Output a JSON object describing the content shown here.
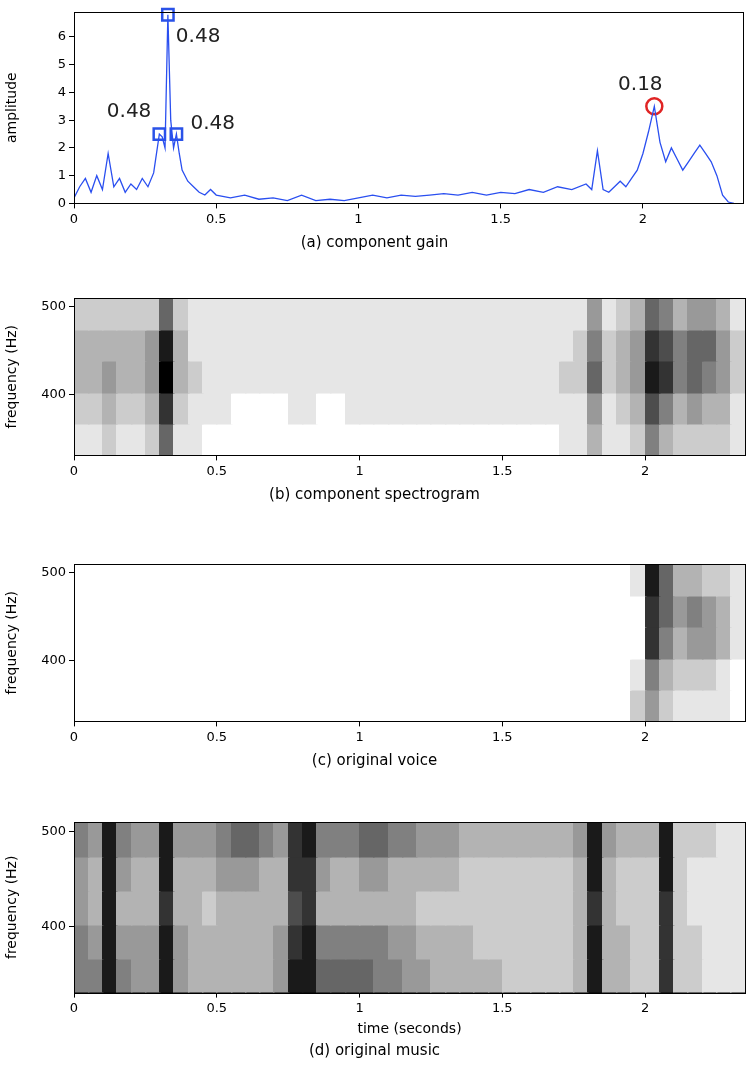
{
  "chart_data": [
    {
      "type": "line",
      "title": "(a) component gain",
      "y_label": "amplitude",
      "grid": false,
      "color": "#2a4ff0",
      "xlim": [
        0,
        2.35
      ],
      "xticks": [
        0,
        0.5,
        1,
        1.5,
        2
      ],
      "ylim": [
        0,
        6.9
      ],
      "yticks": [
        0,
        1,
        2,
        3,
        4,
        5,
        6
      ],
      "x": [
        0,
        0.02,
        0.04,
        0.06,
        0.08,
        0.1,
        0.12,
        0.14,
        0.16,
        0.18,
        0.2,
        0.22,
        0.24,
        0.26,
        0.28,
        0.3,
        0.31,
        0.32,
        0.33,
        0.34,
        0.35,
        0.36,
        0.37,
        0.38,
        0.4,
        0.42,
        0.44,
        0.46,
        0.48,
        0.5,
        0.55,
        0.6,
        0.65,
        0.7,
        0.75,
        0.8,
        0.85,
        0.9,
        0.95,
        1,
        1.05,
        1.1,
        1.15,
        1.2,
        1.25,
        1.3,
        1.35,
        1.4,
        1.45,
        1.5,
        1.55,
        1.6,
        1.65,
        1.7,
        1.75,
        1.8,
        1.82,
        1.84,
        1.86,
        1.88,
        1.9,
        1.92,
        1.94,
        1.96,
        1.98,
        2,
        2.02,
        2.04,
        2.06,
        2.08,
        2.1,
        2.12,
        2.14,
        2.16,
        2.18,
        2.2,
        2.22,
        2.24,
        2.26,
        2.28,
        2.3,
        2.32
      ],
      "values": [
        0.2,
        0.6,
        0.9,
        0.4,
        1.0,
        0.5,
        1.8,
        0.6,
        0.9,
        0.4,
        0.7,
        0.5,
        0.9,
        0.6,
        1.1,
        2.5,
        2.4,
        2.0,
        6.8,
        3.0,
        2.0,
        2.5,
        1.8,
        1.2,
        0.8,
        0.6,
        0.4,
        0.3,
        0.5,
        0.3,
        0.2,
        0.3,
        0.15,
        0.2,
        0.1,
        0.3,
        0.1,
        0.15,
        0.1,
        0.2,
        0.3,
        0.2,
        0.3,
        0.25,
        0.3,
        0.35,
        0.3,
        0.4,
        0.3,
        0.4,
        0.35,
        0.5,
        0.4,
        0.6,
        0.5,
        0.7,
        0.5,
        1.9,
        0.5,
        0.4,
        0.6,
        0.8,
        0.6,
        0.9,
        1.2,
        1.8,
        2.6,
        3.5,
        2.2,
        1.5,
        2.0,
        1.6,
        1.2,
        1.5,
        1.8,
        2.1,
        1.8,
        1.5,
        1.0,
        0.3,
        0.05,
        0
      ],
      "annotations": [
        {
          "x": 0.33,
          "y": 6.8,
          "text": "0.48",
          "marker": "square",
          "color": "#2a52e8"
        },
        {
          "x": 0.3,
          "y": 2.5,
          "text": "0.48",
          "marker": "square",
          "color": "#2a52e8"
        },
        {
          "x": 0.36,
          "y": 2.5,
          "text": "0.48",
          "marker": "square",
          "color": "#2a52e8"
        },
        {
          "x": 2.04,
          "y": 3.5,
          "text": "0.18",
          "marker": "circle",
          "color": "#e02424"
        }
      ]
    },
    {
      "type": "heatmap",
      "title": "(b) component spectrogram",
      "y_label": "frequency (Hz)",
      "grid": false,
      "color": "#000000",
      "xlim": [
        0,
        2.35
      ],
      "xticks": [
        0,
        0.5,
        1,
        1.5,
        2
      ],
      "ylim": [
        330,
        510
      ],
      "yticks": [
        400,
        500
      ],
      "value_range": [
        0,
        1
      ],
      "x": [
        0,
        0.05,
        0.1,
        0.15,
        0.2,
        0.25,
        0.3,
        0.35,
        0.4,
        0.45,
        0.5,
        0.55,
        0.6,
        0.65,
        0.7,
        0.75,
        0.8,
        0.85,
        0.9,
        0.95,
        1,
        1.05,
        1.1,
        1.15,
        1.2,
        1.25,
        1.3,
        1.35,
        1.4,
        1.45,
        1.5,
        1.55,
        1.6,
        1.65,
        1.7,
        1.75,
        1.8,
        1.85,
        1.9,
        1.95,
        2,
        2.05,
        2.1,
        2.15,
        2.2,
        2.25,
        2.3,
        2.35
      ],
      "y": [
        330,
        366,
        402,
        438,
        474,
        510
      ],
      "cells": [
        [
          0.1,
          0.1,
          0.2,
          0.1,
          0.1,
          0.2,
          0.6,
          0.1,
          0.1,
          0,
          0,
          0,
          0,
          0,
          0,
          0,
          0,
          0,
          0,
          0,
          0,
          0,
          0,
          0,
          0,
          0,
          0,
          0,
          0,
          0,
          0,
          0,
          0,
          0,
          0.1,
          0.1,
          0.3,
          0.1,
          0.1,
          0.2,
          0.5,
          0.3,
          0.2,
          0.2,
          0.2,
          0.2,
          0.1
        ],
        [
          0.2,
          0.2,
          0.3,
          0.2,
          0.2,
          0.3,
          0.8,
          0.2,
          0.1,
          0.1,
          0.1,
          0,
          0,
          0,
          0,
          0.1,
          0.1,
          0,
          0,
          0.1,
          0.1,
          0.1,
          0.1,
          0.1,
          0.1,
          0.1,
          0.1,
          0.1,
          0.1,
          0.1,
          0.1,
          0.1,
          0.1,
          0.1,
          0.1,
          0.1,
          0.4,
          0.1,
          0.2,
          0.3,
          0.7,
          0.5,
          0.3,
          0.4,
          0.3,
          0.3,
          0.1
        ],
        [
          0.3,
          0.3,
          0.4,
          0.3,
          0.3,
          0.4,
          1.0,
          0.3,
          0.2,
          0.1,
          0.1,
          0.1,
          0.1,
          0.1,
          0.1,
          0.1,
          0.1,
          0.1,
          0.1,
          0.1,
          0.1,
          0.1,
          0.1,
          0.1,
          0.1,
          0.1,
          0.1,
          0.1,
          0.1,
          0.1,
          0.1,
          0.1,
          0.1,
          0.1,
          0.2,
          0.2,
          0.6,
          0.2,
          0.3,
          0.4,
          0.9,
          0.8,
          0.5,
          0.6,
          0.5,
          0.4,
          0.2
        ],
        [
          0.3,
          0.3,
          0.3,
          0.3,
          0.3,
          0.4,
          0.9,
          0.3,
          0.1,
          0.1,
          0.1,
          0.1,
          0.1,
          0.1,
          0.1,
          0.1,
          0.1,
          0.1,
          0.1,
          0.1,
          0.1,
          0.1,
          0.1,
          0.1,
          0.1,
          0.1,
          0.1,
          0.1,
          0.1,
          0.1,
          0.1,
          0.1,
          0.1,
          0.1,
          0.1,
          0.2,
          0.5,
          0.2,
          0.3,
          0.4,
          0.8,
          0.7,
          0.5,
          0.6,
          0.6,
          0.4,
          0.2
        ],
        [
          0.2,
          0.2,
          0.2,
          0.2,
          0.2,
          0.2,
          0.6,
          0.2,
          0.1,
          0.1,
          0.1,
          0.1,
          0.1,
          0.1,
          0.1,
          0.1,
          0.1,
          0.1,
          0.1,
          0.1,
          0.1,
          0.1,
          0.1,
          0.1,
          0.1,
          0.1,
          0.1,
          0.1,
          0.1,
          0.1,
          0.1,
          0.1,
          0.1,
          0.1,
          0.1,
          0.1,
          0.4,
          0.1,
          0.2,
          0.3,
          0.6,
          0.5,
          0.3,
          0.4,
          0.4,
          0.3,
          0.1
        ]
      ]
    },
    {
      "type": "heatmap",
      "title": "(c) original voice",
      "y_label": "frequency (Hz)",
      "grid": false,
      "color": "#000000",
      "xlim": [
        0,
        2.35
      ],
      "xticks": [
        0,
        0.5,
        1,
        1.5,
        2
      ],
      "ylim": [
        330,
        510
      ],
      "yticks": [
        400,
        500
      ],
      "value_range": [
        0,
        1
      ],
      "x": [
        0,
        0.05,
        0.1,
        0.15,
        0.2,
        0.25,
        0.3,
        0.35,
        0.4,
        0.45,
        0.5,
        0.55,
        0.6,
        0.65,
        0.7,
        0.75,
        0.8,
        0.85,
        0.9,
        0.95,
        1,
        1.05,
        1.1,
        1.15,
        1.2,
        1.25,
        1.3,
        1.35,
        1.4,
        1.45,
        1.5,
        1.55,
        1.6,
        1.65,
        1.7,
        1.75,
        1.8,
        1.85,
        1.9,
        1.95,
        2,
        2.05,
        2.1,
        2.15,
        2.2,
        2.25,
        2.3,
        2.35
      ],
      "y": [
        330,
        366,
        402,
        438,
        474,
        510
      ],
      "cells": [
        [
          0,
          0,
          0,
          0,
          0,
          0,
          0,
          0,
          0,
          0,
          0,
          0,
          0,
          0,
          0,
          0,
          0,
          0,
          0,
          0,
          0,
          0,
          0,
          0,
          0,
          0,
          0,
          0,
          0,
          0,
          0,
          0,
          0,
          0,
          0,
          0,
          0,
          0,
          0,
          0.2,
          0.4,
          0.2,
          0.1,
          0.1,
          0.1,
          0.1,
          0
        ],
        [
          0,
          0,
          0,
          0,
          0,
          0,
          0,
          0,
          0,
          0,
          0,
          0,
          0,
          0,
          0,
          0,
          0,
          0,
          0,
          0,
          0,
          0,
          0,
          0,
          0,
          0,
          0,
          0,
          0,
          0,
          0,
          0,
          0,
          0,
          0,
          0,
          0,
          0,
          0,
          0.1,
          0.5,
          0.3,
          0.2,
          0.2,
          0.2,
          0.1,
          0
        ],
        [
          0,
          0,
          0,
          0,
          0,
          0,
          0,
          0,
          0,
          0,
          0,
          0,
          0,
          0,
          0,
          0,
          0,
          0,
          0,
          0,
          0,
          0,
          0,
          0,
          0,
          0,
          0,
          0,
          0,
          0,
          0,
          0,
          0,
          0,
          0,
          0,
          0,
          0,
          0,
          0,
          0.8,
          0.5,
          0.3,
          0.4,
          0.4,
          0.3,
          0.1
        ],
        [
          0,
          0,
          0,
          0,
          0,
          0,
          0,
          0,
          0,
          0,
          0,
          0,
          0,
          0,
          0,
          0,
          0,
          0,
          0,
          0,
          0,
          0,
          0,
          0,
          0,
          0,
          0,
          0,
          0,
          0,
          0,
          0,
          0,
          0,
          0,
          0,
          0,
          0,
          0,
          0,
          0.8,
          0.6,
          0.4,
          0.5,
          0.4,
          0.3,
          0.1
        ],
        [
          0,
          0,
          0,
          0,
          0,
          0,
          0,
          0,
          0,
          0,
          0,
          0,
          0,
          0,
          0,
          0,
          0,
          0,
          0,
          0,
          0,
          0,
          0,
          0,
          0,
          0,
          0,
          0,
          0,
          0,
          0,
          0,
          0,
          0,
          0,
          0,
          0,
          0,
          0,
          0.1,
          0.9,
          0.6,
          0.3,
          0.3,
          0.2,
          0.2,
          0.1
        ]
      ]
    },
    {
      "type": "heatmap",
      "title": "(d) original music",
      "x_label": "time (seconds)",
      "y_label": "frequency (Hz)",
      "grid": false,
      "color": "#000000",
      "xlim": [
        0,
        2.35
      ],
      "xticks": [
        0,
        0.5,
        1,
        1.5,
        2
      ],
      "ylim": [
        330,
        510
      ],
      "yticks": [
        400,
        500
      ],
      "value_range": [
        0,
        1
      ],
      "x": [
        0,
        0.05,
        0.1,
        0.15,
        0.2,
        0.25,
        0.3,
        0.35,
        0.4,
        0.45,
        0.5,
        0.55,
        0.6,
        0.65,
        0.7,
        0.75,
        0.8,
        0.85,
        0.9,
        0.95,
        1,
        1.05,
        1.1,
        1.15,
        1.2,
        1.25,
        1.3,
        1.35,
        1.4,
        1.45,
        1.5,
        1.55,
        1.6,
        1.65,
        1.7,
        1.75,
        1.8,
        1.85,
        1.9,
        1.95,
        2,
        2.05,
        2.1,
        2.15,
        2.2,
        2.25,
        2.3,
        2.35
      ],
      "y": [
        330,
        366,
        402,
        438,
        474,
        510
      ],
      "cells": [
        [
          0.5,
          0.5,
          0.9,
          0.5,
          0.4,
          0.4,
          0.9,
          0.4,
          0.3,
          0.3,
          0.3,
          0.3,
          0.3,
          0.3,
          0.4,
          0.9,
          0.9,
          0.6,
          0.6,
          0.6,
          0.6,
          0.5,
          0.5,
          0.4,
          0.4,
          0.3,
          0.3,
          0.3,
          0.3,
          0.3,
          0.2,
          0.2,
          0.2,
          0.2,
          0.2,
          0.3,
          0.9,
          0.3,
          0.3,
          0.2,
          0.2,
          0.8,
          0.2,
          0.2,
          0.1,
          0.1,
          0.1
        ],
        [
          0.5,
          0.4,
          0.9,
          0.4,
          0.4,
          0.4,
          0.9,
          0.4,
          0.3,
          0.3,
          0.3,
          0.3,
          0.3,
          0.3,
          0.4,
          0.8,
          0.9,
          0.5,
          0.5,
          0.5,
          0.5,
          0.5,
          0.4,
          0.4,
          0.3,
          0.3,
          0.3,
          0.3,
          0.2,
          0.2,
          0.2,
          0.2,
          0.2,
          0.2,
          0.2,
          0.3,
          0.9,
          0.3,
          0.3,
          0.2,
          0.2,
          0.8,
          0.2,
          0.2,
          0.1,
          0.1,
          0.1
        ],
        [
          0.4,
          0.3,
          0.9,
          0.3,
          0.3,
          0.3,
          0.8,
          0.3,
          0.3,
          0.2,
          0.3,
          0.3,
          0.3,
          0.3,
          0.3,
          0.7,
          0.8,
          0.3,
          0.3,
          0.3,
          0.3,
          0.3,
          0.3,
          0.3,
          0.2,
          0.2,
          0.2,
          0.2,
          0.2,
          0.2,
          0.2,
          0.2,
          0.2,
          0.2,
          0.2,
          0.3,
          0.8,
          0.3,
          0.2,
          0.2,
          0.2,
          0.8,
          0.2,
          0.1,
          0.1,
          0.1,
          0.1
        ],
        [
          0.4,
          0.3,
          0.9,
          0.4,
          0.3,
          0.3,
          0.9,
          0.3,
          0.3,
          0.3,
          0.4,
          0.4,
          0.4,
          0.3,
          0.3,
          0.8,
          0.8,
          0.4,
          0.3,
          0.3,
          0.4,
          0.4,
          0.3,
          0.3,
          0.3,
          0.3,
          0.3,
          0.2,
          0.2,
          0.2,
          0.2,
          0.2,
          0.2,
          0.2,
          0.2,
          0.3,
          0.9,
          0.3,
          0.2,
          0.2,
          0.2,
          0.9,
          0.2,
          0.1,
          0.1,
          0.1,
          0.1
        ],
        [
          0.5,
          0.4,
          0.9,
          0.5,
          0.4,
          0.4,
          0.9,
          0.4,
          0.4,
          0.4,
          0.5,
          0.6,
          0.6,
          0.5,
          0.4,
          0.8,
          0.9,
          0.5,
          0.5,
          0.5,
          0.6,
          0.6,
          0.5,
          0.5,
          0.4,
          0.4,
          0.4,
          0.3,
          0.3,
          0.3,
          0.3,
          0.3,
          0.3,
          0.3,
          0.3,
          0.4,
          0.9,
          0.4,
          0.3,
          0.3,
          0.3,
          0.9,
          0.2,
          0.2,
          0.2,
          0.1,
          0.1
        ]
      ]
    }
  ]
}
